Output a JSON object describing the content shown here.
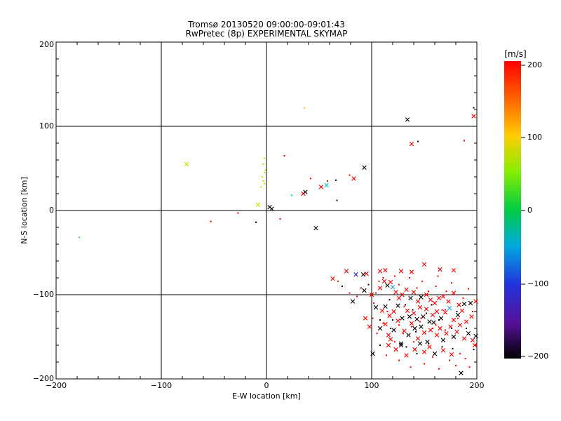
{
  "chart_data": {
    "type": "scatter",
    "title": "Tromsø 20130520 09:00:00-09:01:43",
    "subtitle": "RwPretec (8p) EXPERIMENTAL SKYMAP",
    "xlabel": "E-W location [km]",
    "ylabel": "N-S location [km]",
    "xlim": [
      -200,
      200
    ],
    "ylim": [
      -200,
      200
    ],
    "xticks": [
      "−200",
      "−100",
      "0",
      "100",
      "200"
    ],
    "yticks": [
      "−200",
      "−100",
      "0",
      "100",
      "200"
    ],
    "grid": true,
    "colorbar": {
      "title": "[m/s]",
      "range": [
        -200,
        200
      ],
      "ticks": [
        "200",
        "100",
        "0",
        "−100",
        "−200"
      ]
    },
    "series": [
      {
        "marker": "x",
        "points": [
          [
            -76,
            55
          ],
          [
            -8,
            7
          ],
          [
            3,
            4
          ],
          [
            5,
            2
          ],
          [
            35,
            20
          ],
          [
            37,
            22
          ],
          [
            52,
            28
          ],
          [
            57,
            30
          ],
          [
            83,
            38
          ],
          [
            93,
            51
          ],
          [
            47,
            -21
          ],
          [
            134,
            108
          ],
          [
            138,
            79
          ],
          [
            197,
            112
          ],
          [
            63,
            -81
          ],
          [
            76,
            -72
          ],
          [
            85,
            -76
          ],
          [
            92,
            -76
          ],
          [
            95,
            -75
          ],
          [
            108,
            -72
          ],
          [
            113,
            -71
          ],
          [
            128,
            -72
          ],
          [
            138,
            -73
          ],
          [
            150,
            -64
          ],
          [
            165,
            -70
          ],
          [
            178,
            -71
          ],
          [
            82,
            -108
          ],
          [
            93,
            -95
          ],
          [
            100,
            -100
          ],
          [
            108,
            -92
          ],
          [
            112,
            -84
          ],
          [
            115,
            -89
          ],
          [
            118,
            -85
          ],
          [
            120,
            -91
          ],
          [
            123,
            -97
          ],
          [
            126,
            -104
          ],
          [
            129,
            -100
          ],
          [
            133,
            -94
          ],
          [
            137,
            -104
          ],
          [
            140,
            -97
          ],
          [
            144,
            -108
          ],
          [
            147,
            -103
          ],
          [
            152,
            -100
          ],
          [
            156,
            -106
          ],
          [
            160,
            -110
          ],
          [
            164,
            -104
          ],
          [
            168,
            -102
          ],
          [
            173,
            -108
          ],
          [
            178,
            -98
          ],
          [
            183,
            -112
          ],
          [
            188,
            -111
          ],
          [
            194,
            -110
          ],
          [
            199,
            -108
          ],
          [
            104,
            -115
          ],
          [
            110,
            -119
          ],
          [
            113,
            -114
          ],
          [
            117,
            -125
          ],
          [
            121,
            -120
          ],
          [
            125,
            -113
          ],
          [
            129,
            -128
          ],
          [
            134,
            -119
          ],
          [
            136,
            -126
          ],
          [
            140,
            -122
          ],
          [
            143,
            -129
          ],
          [
            146,
            -115
          ],
          [
            149,
            -126
          ],
          [
            152,
            -117
          ],
          [
            155,
            -132
          ],
          [
            158,
            -124
          ],
          [
            162,
            -120
          ],
          [
            166,
            -128
          ],
          [
            170,
            -121
          ],
          [
            174,
            -116
          ],
          [
            178,
            -130
          ],
          [
            182,
            -124
          ],
          [
            186,
            -119
          ],
          [
            190,
            -132
          ],
          [
            195,
            -126
          ],
          [
            94,
            -128
          ],
          [
            98,
            -138
          ],
          [
            108,
            -140
          ],
          [
            113,
            -135
          ],
          [
            116,
            -148
          ],
          [
            118,
            -153
          ],
          [
            121,
            -142
          ],
          [
            125,
            -131
          ],
          [
            128,
            -158
          ],
          [
            131,
            -143
          ],
          [
            135,
            -148
          ],
          [
            138,
            -134
          ],
          [
            141,
            -140
          ],
          [
            144,
            -152
          ],
          [
            147,
            -138
          ],
          [
            150,
            -145
          ],
          [
            153,
            -156
          ],
          [
            156,
            -142
          ],
          [
            159,
            -133
          ],
          [
            162,
            -148
          ],
          [
            165,
            -140
          ],
          [
            168,
            -154
          ],
          [
            171,
            -146
          ],
          [
            175,
            -138
          ],
          [
            178,
            -150
          ],
          [
            181,
            -144
          ],
          [
            184,
            -136
          ],
          [
            188,
            -152
          ],
          [
            192,
            -146
          ],
          [
            196,
            -154
          ],
          [
            199,
            -149
          ],
          [
            101,
            -170
          ],
          [
            116,
            -160
          ],
          [
            123,
            -165
          ],
          [
            128,
            -160
          ],
          [
            133,
            -172
          ],
          [
            141,
            -165
          ],
          [
            146,
            -158
          ],
          [
            150,
            -168
          ],
          [
            155,
            -162
          ],
          [
            160,
            -170
          ],
          [
            168,
            -166
          ],
          [
            176,
            -171
          ],
          [
            185,
            -193
          ],
          [
            198,
            -160
          ]
        ],
        "colors": [
          "#bbee00",
          "#bbee00",
          "#000000",
          "#000000",
          "#ff0000",
          "#000000",
          "#ff0000",
          "#00cccc",
          "#ff0000",
          "#000000",
          "#000000",
          "#000000",
          "#ff0000",
          "#ff0000",
          "#ff0000",
          "#ff0000",
          "#2222dd",
          "#000000",
          "#ff0000",
          "#ff0000",
          "#ff0000",
          "#ff0000",
          "#ff0000",
          "#ff0000",
          "#ff0000",
          "#ff0000",
          "#000000",
          "#000000",
          "#ff0000",
          "#ff0000",
          "#ff0000",
          "#000000",
          "#ff0000",
          "#2299ee",
          "#ff0000",
          "#ff0000",
          "#ff0000",
          "#ff0000",
          "#000000",
          "#ff0000",
          "#ff0000",
          "#000000",
          "#ff0000",
          "#ff0000",
          "#ff0000",
          "#ff0000",
          "#ff0000",
          "#ff0000",
          "#ff0000",
          "#ff0000",
          "#000000",
          "#000000",
          "#ff0000",
          "#000000",
          "#ff0000",
          "#000000",
          "#ff0000",
          "#ff0000",
          "#000000",
          "#000000",
          "#ff0000",
          "#000000",
          "#ff0000",
          "#000000",
          "#ff0000",
          "#000000",
          "#ff0000",
          "#000000",
          "#ff0000",
          "#ff0000",
          "#000000",
          "#ff0000",
          "#2299ee",
          "#ff0000",
          "#000000",
          "#ff0000",
          "#ff0000",
          "#ff0000",
          "#ff0000",
          "#ff0000",
          "#000000",
          "#ff0000",
          "#ff0000",
          "#ff0000",
          "#000000",
          "#ff0000",
          "#000000",
          "#ff0000",
          "#000000",
          "#ff0000",
          "#000000",
          "#ff0000",
          "#000000",
          "#ff0000",
          "#000000",
          "#ff0000",
          "#000000",
          "#ff0000",
          "#ff0000",
          "#000000",
          "#ff0000",
          "#ff0000",
          "#000000",
          "#ff0000",
          "#ff0000",
          "#ff0000",
          "#000000",
          "#ff0000",
          "#000000",
          "#000000",
          "#ff0000",
          "#ff0000",
          "#000000",
          "#ff0000",
          "#ff0000",
          "#000000",
          "#ff0000",
          "#ff0000",
          "#000000",
          "#ff0000",
          "#ff0000",
          "#000000",
          "#ff0000"
        ]
      },
      {
        "marker": "dot",
        "points": [
          [
            -178,
            -32
          ],
          [
            -53,
            -13
          ],
          [
            -27,
            -3
          ],
          [
            -10,
            -14
          ],
          [
            -5,
            28
          ],
          [
            -4,
            40
          ],
          [
            -3,
            55
          ],
          [
            -3,
            35
          ],
          [
            -2,
            45
          ],
          [
            -2,
            62
          ],
          [
            -2,
            32
          ],
          [
            -1,
            48
          ],
          [
            13,
            -10
          ],
          [
            17,
            65
          ],
          [
            24,
            18
          ],
          [
            36,
            122
          ],
          [
            42,
            38
          ],
          [
            58,
            35
          ],
          [
            66,
            36
          ],
          [
            67,
            12
          ],
          [
            79,
            42
          ],
          [
            144,
            82
          ],
          [
            188,
            83
          ],
          [
            197,
            122
          ],
          [
            68,
            -84
          ],
          [
            72,
            -90
          ],
          [
            79,
            -98
          ],
          [
            86,
            -102
          ],
          [
            90,
            -92
          ],
          [
            97,
            -88
          ],
          [
            102,
            -110
          ],
          [
            104,
            -98
          ],
          [
            107,
            -84
          ],
          [
            111,
            -80
          ],
          [
            117,
            -106
          ],
          [
            122,
            -78
          ],
          [
            126,
            -88
          ],
          [
            131,
            -114
          ],
          [
            136,
            -80
          ],
          [
            139,
            -118
          ],
          [
            143,
            -92
          ],
          [
            148,
            -84
          ],
          [
            154,
            -96
          ],
          [
            157,
            -112
          ],
          [
            161,
            -90
          ],
          [
            163,
            -78
          ],
          [
            167,
            -118
          ],
          [
            171,
            -96
          ],
          [
            176,
            -86
          ],
          [
            181,
            -120
          ],
          [
            187,
            -104
          ],
          [
            192,
            -93
          ],
          [
            101,
            -128
          ],
          [
            105,
            -146
          ],
          [
            108,
            -160
          ],
          [
            111,
            -134
          ],
          [
            114,
            -172
          ],
          [
            118,
            -140
          ],
          [
            122,
            -156
          ],
          [
            126,
            -178
          ],
          [
            130,
            -146
          ],
          [
            133,
            -162
          ],
          [
            137,
            -186
          ],
          [
            140,
            -156
          ],
          [
            143,
            -170
          ],
          [
            147,
            -128
          ],
          [
            150,
            -182
          ],
          [
            154,
            -158
          ],
          [
            158,
            -174
          ],
          [
            161,
            -136
          ],
          [
            164,
            -188
          ],
          [
            167,
            -162
          ],
          [
            170,
            -142
          ],
          [
            174,
            -178
          ],
          [
            177,
            -164
          ],
          [
            180,
            -184
          ],
          [
            184,
            -170
          ],
          [
            189,
            -176
          ],
          [
            193,
            -186
          ],
          [
            197,
            -165
          ],
          [
            108,
            -130
          ],
          [
            115,
            -120
          ],
          [
            120,
            -130
          ],
          [
            126,
            -136
          ],
          [
            132,
            -112
          ],
          [
            138,
            -138
          ],
          [
            142,
            -144
          ],
          [
            146,
            -132
          ],
          [
            152,
            -122
          ],
          [
            158,
            -140
          ],
          [
            164,
            -130
          ],
          [
            170,
            -118
          ],
          [
            176,
            -140
          ],
          [
            182,
            -128
          ],
          [
            190,
            -140
          ],
          [
            196,
            -120
          ]
        ],
        "colors": [
          "#22dd44",
          "#ff0000",
          "#ff0000",
          "#000000",
          "#aaee00",
          "#aaee00",
          "#aaee00",
          "#aaee00",
          "#aaee00",
          "#aaee00",
          "#aaee00",
          "#aaee00",
          "#ff0000",
          "#ff0000",
          "#22dd44",
          "#ffcc00",
          "#ff0000",
          "#ff0000",
          "#000000",
          "#000000",
          "#ff0000",
          "#000000",
          "#ff0000",
          "#000000",
          "#ff0000",
          "#000000",
          "#ff0000",
          "#ff0000",
          "#ff0000",
          "#000000",
          "#ff0000",
          "#ff0000",
          "#ff0000",
          "#ff0000",
          "#000000",
          "#ff0000",
          "#ff0000",
          "#ff0000",
          "#ff0000",
          "#000000",
          "#ff0000",
          "#ff0000",
          "#ff0000",
          "#000000",
          "#ff0000",
          "#ff0000",
          "#ff0000",
          "#ff0000",
          "#ff0000",
          "#000000",
          "#ff0000",
          "#ff0000",
          "#ff0000",
          "#ff0000",
          "#000000",
          "#ff0000",
          "#ff0000",
          "#000000",
          "#ff0000",
          "#ff0000",
          "#ff0000",
          "#000000",
          "#ff0000",
          "#ff0000",
          "#000000",
          "#ff0000",
          "#ff0000",
          "#000000",
          "#ff0000",
          "#ff0000",
          "#ff0000",
          "#000000",
          "#ff0000",
          "#ff0000",
          "#000000",
          "#ff0000",
          "#ff0000",
          "#ff0000",
          "#ff0000",
          "#000000",
          "#000000",
          "#ff0000",
          "#000000",
          "#ff0000",
          "#000000",
          "#ff0000",
          "#000000",
          "#ff0000",
          "#000000",
          "#ff0000",
          "#000000",
          "#ff0000",
          "#000000",
          "#ff0000",
          "#000000",
          "#ff0000"
        ]
      }
    ]
  }
}
